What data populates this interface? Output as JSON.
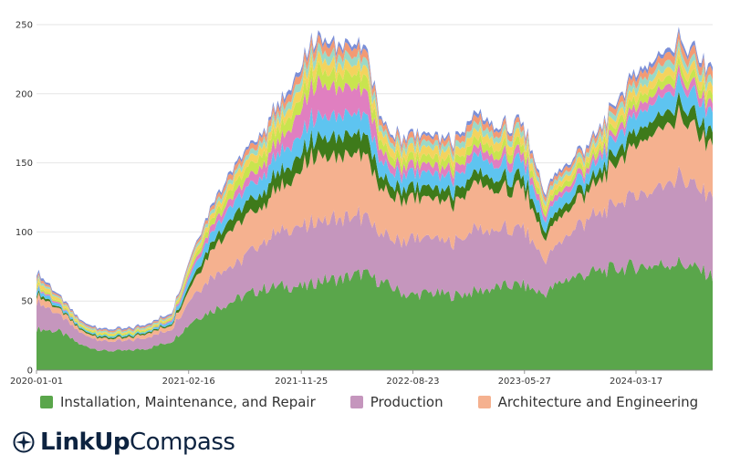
{
  "chart_data": {
    "type": "area",
    "stacked": true,
    "title": "",
    "xlabel": "",
    "ylabel": "",
    "ylim": [
      0,
      250
    ],
    "yticks": [
      0,
      50,
      100,
      150,
      200,
      250
    ],
    "x_tick_labels": [
      "2020-01-01",
      "2021-02-16",
      "2021-11-25",
      "2022-08-23",
      "2023-05-27",
      "2024-03-17"
    ],
    "x_ticks_index": [
      0,
      13.5,
      23.5,
      33.4,
      43.3,
      53.2
    ],
    "x_index_max": 60,
    "x_points": [
      0,
      2,
      4,
      6,
      8,
      10,
      12,
      14,
      16,
      18,
      20,
      22,
      24,
      25,
      27,
      29,
      31,
      33,
      35,
      37,
      39,
      41,
      43,
      45,
      47,
      49,
      51,
      53,
      55,
      57,
      59,
      60
    ],
    "series": [
      {
        "name": "Installation, Maintenance, and Repair",
        "color": "#5aa64b",
        "values": [
          30,
          28,
          18,
          14,
          14,
          16,
          21,
          37,
          45,
          52,
          59,
          61,
          60,
          65,
          66,
          70,
          62,
          54,
          56,
          54,
          57,
          60,
          62,
          55,
          66,
          70,
          73,
          75,
          76,
          78,
          72,
          68
        ]
      },
      {
        "name": "Production",
        "color": "#c596bd",
        "values": [
          20,
          12,
          8,
          7,
          7,
          8,
          9,
          19,
          26,
          26,
          34,
          40,
          43,
          43,
          45,
          42,
          34,
          40,
          40,
          38,
          44,
          40,
          43,
          24,
          31,
          40,
          46,
          52,
          57,
          62,
          58,
          60
        ]
      },
      {
        "name": "Architecture and Engineering",
        "color": "#f5b18f",
        "values": [
          5,
          4,
          2,
          2,
          2,
          3,
          3,
          10,
          22,
          28,
          26,
          32,
          45,
          48,
          46,
          45,
          30,
          30,
          28,
          28,
          34,
          28,
          30,
          16,
          18,
          20,
          28,
          36,
          40,
          44,
          38,
          36
        ]
      },
      {
        "name": "",
        "color": "#3e7a1a",
        "values": [
          2,
          1,
          1,
          1,
          1,
          1,
          1,
          4,
          6,
          9,
          10,
          12,
          12,
          13,
          14,
          14,
          8,
          8,
          8,
          8,
          8,
          8,
          8,
          6,
          6,
          6,
          8,
          10,
          10,
          10,
          10,
          10
        ]
      },
      {
        "name": "",
        "color": "#5ec4f0",
        "values": [
          3,
          2,
          1,
          1,
          1,
          1,
          2,
          6,
          8,
          10,
          12,
          14,
          14,
          16,
          15,
          15,
          10,
          10,
          10,
          10,
          12,
          10,
          12,
          8,
          8,
          8,
          10,
          12,
          12,
          14,
          14,
          14
        ]
      },
      {
        "name": "",
        "color": "#e07fc0",
        "values": [
          1,
          1,
          0,
          0,
          0,
          0,
          1,
          3,
          5,
          6,
          8,
          10,
          22,
          24,
          20,
          18,
          6,
          6,
          6,
          6,
          6,
          6,
          6,
          4,
          4,
          4,
          4,
          6,
          6,
          6,
          6,
          6
        ]
      },
      {
        "name": "",
        "color": "#c9e44f",
        "values": [
          2,
          1,
          1,
          1,
          1,
          1,
          1,
          3,
          5,
          7,
          8,
          9,
          10,
          10,
          10,
          10,
          6,
          6,
          6,
          6,
          6,
          6,
          6,
          4,
          4,
          4,
          5,
          6,
          6,
          6,
          6,
          6
        ]
      },
      {
        "name": "",
        "color": "#f4d35e",
        "values": [
          3,
          2,
          1,
          1,
          1,
          1,
          1,
          3,
          4,
          5,
          6,
          6,
          8,
          8,
          7,
          7,
          6,
          6,
          6,
          6,
          6,
          6,
          6,
          4,
          4,
          4,
          5,
          6,
          6,
          6,
          6,
          6
        ]
      },
      {
        "name": "",
        "color": "#9ad9c7",
        "values": [
          2,
          1,
          1,
          1,
          1,
          1,
          1,
          2,
          3,
          3,
          4,
          5,
          6,
          6,
          6,
          6,
          4,
          4,
          4,
          4,
          5,
          4,
          4,
          3,
          3,
          3,
          4,
          5,
          5,
          5,
          5,
          5
        ]
      },
      {
        "name": "",
        "color": "#f39a73",
        "values": [
          2,
          1,
          1,
          1,
          1,
          1,
          1,
          2,
          3,
          4,
          4,
          5,
          6,
          6,
          6,
          6,
          4,
          4,
          4,
          4,
          5,
          4,
          4,
          3,
          3,
          3,
          4,
          5,
          5,
          6,
          6,
          6
        ]
      },
      {
        "name": "",
        "color": "#7b8fd8",
        "values": [
          2,
          1,
          1,
          1,
          1,
          1,
          1,
          1,
          2,
          2,
          2,
          3,
          3,
          3,
          3,
          3,
          2,
          2,
          2,
          2,
          3,
          2,
          2,
          2,
          2,
          2,
          2,
          3,
          3,
          3,
          3,
          3
        ]
      }
    ]
  },
  "legend": {
    "items": [
      {
        "label": "Installation, Maintenance, and Repair",
        "color": "#5aa64b"
      },
      {
        "label": "Production",
        "color": "#c596bd"
      },
      {
        "label": "Architecture and Engineering",
        "color": "#f5b18f"
      }
    ]
  },
  "brand": {
    "bold": "LinkUp",
    "light": "Compass",
    "icon": "compass-icon"
  }
}
